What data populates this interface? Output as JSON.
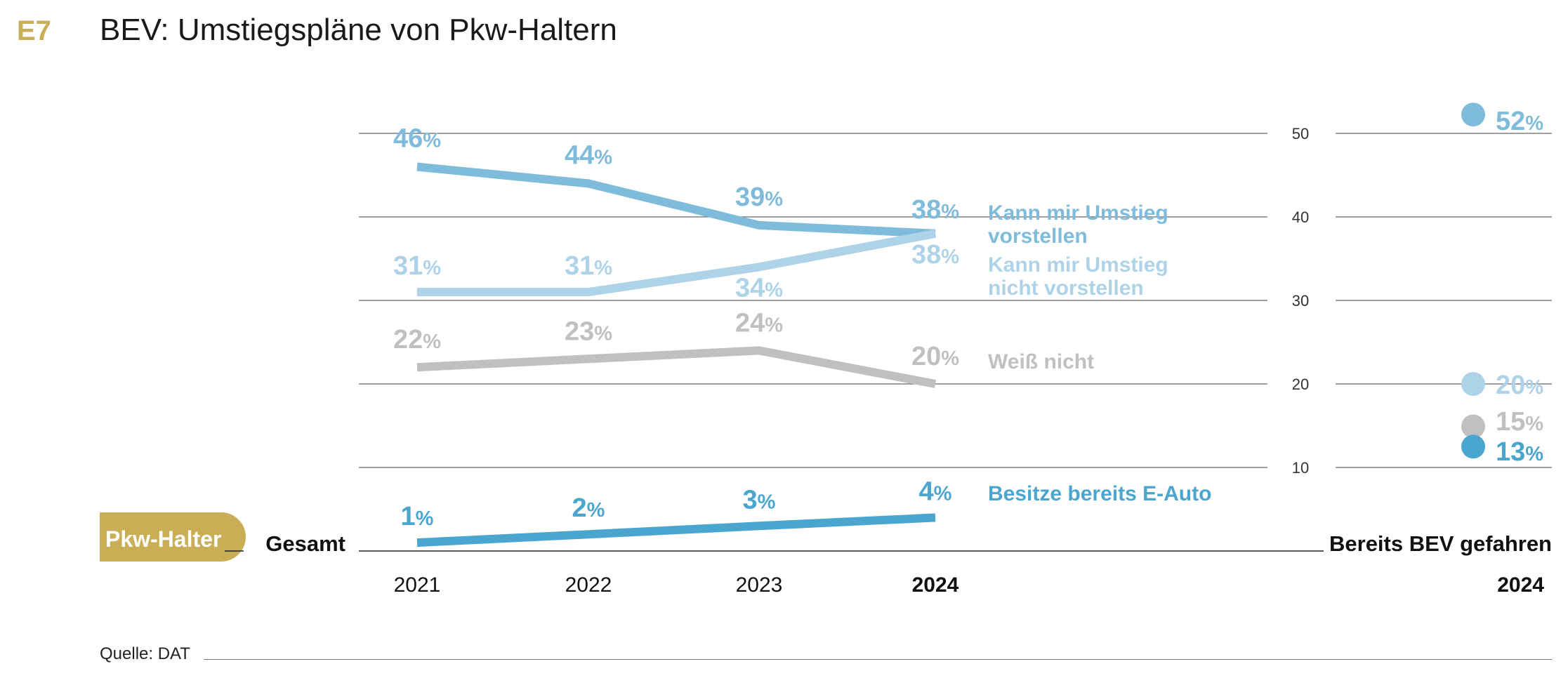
{
  "header": {
    "code": "E7",
    "title": "BEV: Umstiegspläne von Pkw-Haltern"
  },
  "pill_label": "Pkw-Halter",
  "source": "Quelle: DAT",
  "colors": {
    "kann": "#7fbbdb",
    "nicht": "#aed3e9",
    "weiss": "#c0c0c0",
    "besitze": "#4aa6cf",
    "gold": "#c9ae55",
    "grid": "#666666"
  },
  "chart_data": [
    {
      "type": "line",
      "group_label": "Gesamt",
      "categories": [
        "2021",
        "2022",
        "2023",
        "2024"
      ],
      "bold_category": "2024",
      "percent_sign": "%",
      "ylim": [
        0,
        50
      ],
      "yticks": [
        10,
        20,
        30,
        40,
        50
      ],
      "series": [
        {
          "key": "kann",
          "name": "Kann mir Umstieg vorstellen",
          "name_lines": [
            "Kann mir Umstieg",
            "vorstellen"
          ],
          "values": [
            46,
            44,
            39,
            38
          ],
          "label_values": [
            "46",
            "44",
            "39",
            "38"
          ]
        },
        {
          "key": "nicht",
          "name": "Kann mir Umstieg nicht vorstellen",
          "name_lines": [
            "Kann mir Umstieg",
            "nicht vorstellen"
          ],
          "values": [
            31,
            31,
            34,
            38
          ],
          "label_values": [
            "31",
            "31",
            "34",
            "38"
          ]
        },
        {
          "key": "weiss",
          "name": "Weiß nicht",
          "name_lines": [
            "Weiß nicht"
          ],
          "values": [
            22,
            23,
            24,
            20
          ],
          "label_values": [
            "22",
            "23",
            "24",
            "20"
          ]
        },
        {
          "key": "besitze",
          "name": "Besitze bereits E-Auto",
          "name_lines": [
            "Besitze bereits E-Auto"
          ],
          "values": [
            1,
            2,
            3,
            4
          ],
          "label_values": [
            "1",
            "2",
            "3",
            "4"
          ]
        }
      ]
    },
    {
      "type": "scatter",
      "group_label": "Bereits BEV gefahren",
      "category": "2024",
      "points": [
        {
          "key": "kann",
          "value": 52,
          "label": "52"
        },
        {
          "key": "nicht",
          "value": 20,
          "label": "20"
        },
        {
          "key": "weiss",
          "value": 15,
          "label": "15"
        },
        {
          "key": "besitze",
          "value": 13,
          "label": "13"
        }
      ]
    }
  ]
}
